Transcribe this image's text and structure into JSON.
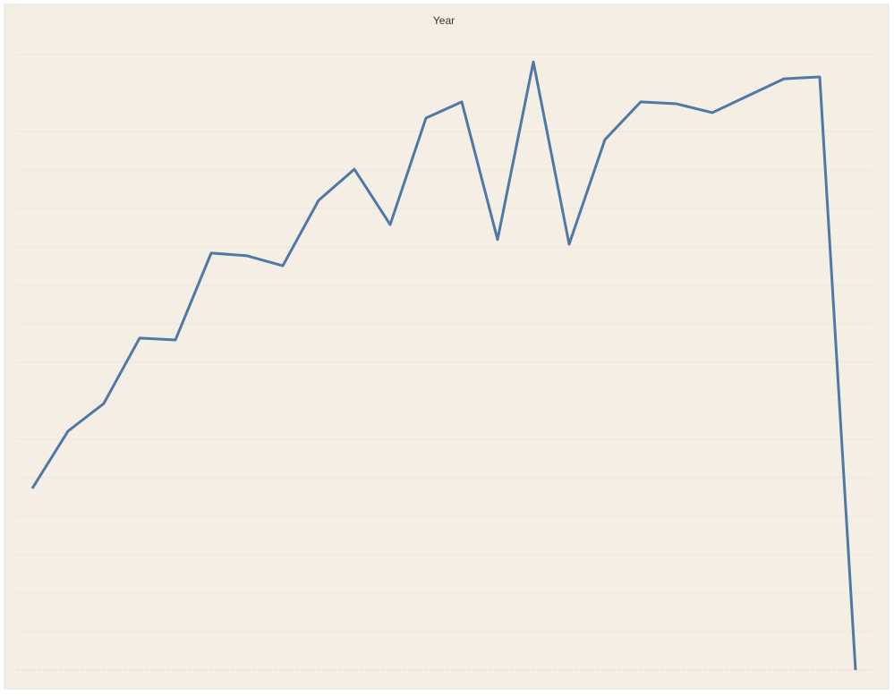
{
  "chart_data": {
    "type": "line",
    "title": "Year",
    "categories": [
      null,
      null,
      null,
      null,
      null,
      null,
      null,
      null,
      null,
      null,
      null,
      null,
      null,
      null,
      null,
      null,
      null,
      null,
      null,
      null,
      null,
      null,
      null,
      null
    ],
    "series": [
      {
        "color": "#4e79a7",
        "values": [
          4.72,
          6.21,
          6.93,
          8.63,
          8.58,
          10.84,
          10.77,
          10.51,
          12.21,
          13.02,
          11.58,
          14.35,
          14.77,
          11.19,
          15.81,
          11.07,
          13.79,
          14.77,
          14.72,
          14.49,
          14.93,
          15.37,
          15.42,
          0
        ]
      }
    ],
    "ylim": [
      0,
      16
    ],
    "yticks": [
      0,
      1,
      2,
      3,
      4,
      5,
      6,
      7,
      8,
      9,
      10,
      11,
      12,
      13,
      14,
      15,
      16
    ],
    "grid": true
  }
}
